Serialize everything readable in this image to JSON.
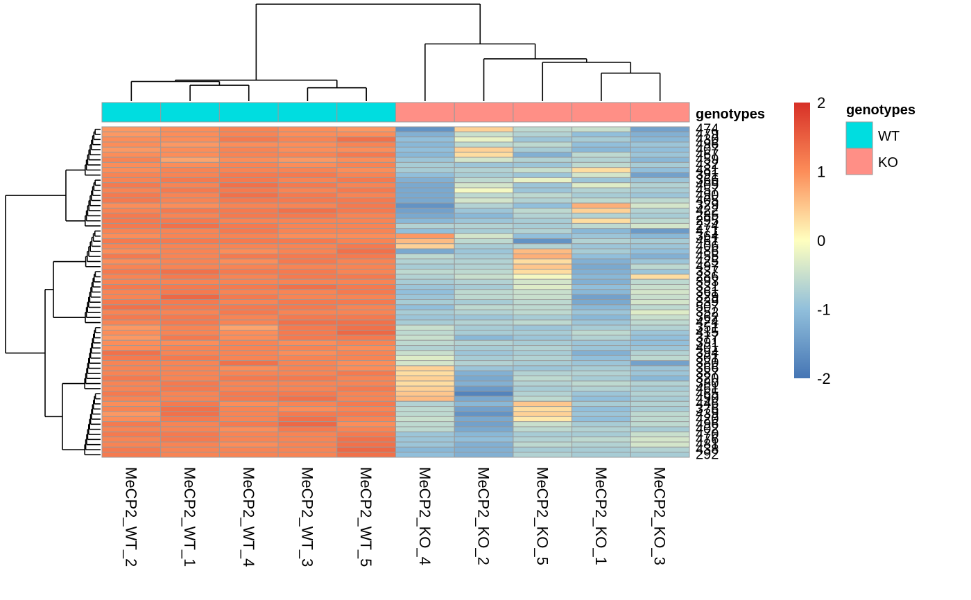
{
  "chart_data": {
    "type": "heatmap",
    "columns": [
      "MeCP2_WT_2",
      "MeCP2_WT_1",
      "MeCP2_WT_4",
      "MeCP2_WT_3",
      "MeCP2_WT_5",
      "MeCP2_KO_4",
      "MeCP2_KO_2",
      "MeCP2_KO_5",
      "MeCP2_KO_1",
      "MeCP2_KO_3"
    ],
    "column_genotypes": [
      "WT",
      "WT",
      "WT",
      "WT",
      "WT",
      "KO",
      "KO",
      "KO",
      "KO",
      "KO"
    ],
    "annotation_title": "genotypes",
    "legend": {
      "title": "genotypes",
      "items": [
        {
          "label": "WT",
          "color": "#00DDE0"
        },
        {
          "label": "KO",
          "color": "#FF8F86"
        }
      ]
    },
    "color_scale": {
      "range": [
        -2,
        2
      ],
      "ticks": [
        2,
        1,
        0,
        -1,
        -2
      ],
      "low_color": "#4575B4",
      "mid_color": "#FFFFBF",
      "high_color": "#D73027"
    },
    "row_labels": [
      "474",
      "479",
      "430",
      "496",
      "407",
      "467",
      "459",
      "432",
      "481",
      "391",
      "366",
      "409",
      "457",
      "490",
      "405",
      "329",
      "422",
      "285",
      "295",
      "274",
      "471",
      "364",
      "461",
      "406",
      "486",
      "455",
      "425",
      "497",
      "337",
      "286",
      "393",
      "331",
      "361",
      "329",
      "339",
      "507",
      "352",
      "362",
      "424",
      "351",
      "415",
      "377",
      "391",
      "401",
      "394",
      "301",
      "380",
      "366",
      "387",
      "320",
      "380",
      "461",
      "465",
      "490",
      "446",
      "376",
      "439",
      "420",
      "496",
      "402",
      "470",
      "476",
      "481",
      "438",
      "292"
    ],
    "values": [
      [
        0.9,
        1.0,
        1.1,
        1.0,
        0.9,
        -1.6,
        0.4,
        -0.6,
        -0.5,
        -1.4
      ],
      [
        0.9,
        1.0,
        1.1,
        1.0,
        1.0,
        -1.2,
        -0.5,
        -0.7,
        -1.0,
        -1.2
      ],
      [
        1.0,
        1.0,
        1.2,
        1.1,
        1.3,
        -1.0,
        -0.2,
        -0.9,
        -0.8,
        -1.1
      ],
      [
        1.0,
        0.9,
        1.0,
        1.0,
        1.1,
        -1.1,
        -0.6,
        -0.6,
        -1.0,
        -0.9
      ],
      [
        0.9,
        1.0,
        1.1,
        1.0,
        1.0,
        -1.0,
        0.4,
        -0.8,
        -1.1,
        -1.0
      ],
      [
        1.0,
        1.0,
        1.1,
        1.1,
        1.2,
        -1.1,
        0.3,
        -1.2,
        -0.6,
        -0.9
      ],
      [
        1.1,
        0.8,
        1.0,
        0.9,
        1.0,
        -0.9,
        -0.4,
        -0.7,
        -0.7,
        -1.1
      ],
      [
        1.0,
        1.0,
        1.1,
        1.0,
        1.1,
        -0.8,
        -0.9,
        -0.9,
        -0.6,
        -0.8
      ],
      [
        1.0,
        1.1,
        1.1,
        1.1,
        1.0,
        -0.8,
        -0.7,
        -0.5,
        0.3,
        -1.0
      ],
      [
        1.1,
        1.1,
        1.2,
        1.2,
        1.1,
        -1.0,
        -0.8,
        -0.9,
        -0.4,
        -1.4
      ],
      [
        1.1,
        1.2,
        1.2,
        1.1,
        1.2,
        -1.2,
        -0.6,
        -0.2,
        -0.9,
        -0.9
      ],
      [
        1.2,
        1.1,
        1.3,
        1.2,
        1.1,
        -1.3,
        -0.4,
        -0.9,
        -0.3,
        -0.7
      ],
      [
        1.1,
        1.2,
        1.2,
        1.1,
        1.2,
        -1.3,
        -0.1,
        -0.9,
        -0.7,
        -0.8
      ],
      [
        1.2,
        1.1,
        1.3,
        1.2,
        1.1,
        -1.3,
        -0.6,
        -0.6,
        -0.8,
        -0.9
      ],
      [
        1.2,
        1.1,
        1.2,
        1.2,
        1.2,
        -1.3,
        -0.4,
        -0.7,
        -0.6,
        -0.6
      ],
      [
        1.0,
        1.0,
        1.1,
        1.1,
        1.2,
        -1.6,
        -0.7,
        -1.0,
        0.7,
        -0.4
      ],
      [
        1.1,
        1.2,
        1.2,
        1.3,
        1.2,
        -1.4,
        -0.9,
        -0.6,
        0.4,
        -0.7
      ],
      [
        1.2,
        1.1,
        1.2,
        1.2,
        1.1,
        -1.3,
        -1.1,
        -0.7,
        -0.7,
        -0.8
      ],
      [
        1.2,
        1.2,
        1.1,
        1.1,
        1.1,
        -1.1,
        -0.9,
        -0.8,
        0.3,
        -0.6
      ],
      [
        1.2,
        1.3,
        1.2,
        1.1,
        1.1,
        -0.7,
        -0.7,
        -0.8,
        -0.6,
        -0.4
      ],
      [
        1.1,
        1.1,
        1.2,
        1.1,
        1.1,
        -1.0,
        -0.8,
        -0.7,
        -1.1,
        -1.5
      ],
      [
        1.0,
        1.1,
        1.1,
        1.0,
        1.0,
        0.9,
        -0.4,
        -1.0,
        -0.9,
        -1.1
      ],
      [
        1.2,
        1.2,
        1.2,
        1.2,
        1.1,
        0.6,
        -0.6,
        -1.6,
        -0.7,
        -0.8
      ],
      [
        1.1,
        1.1,
        1.1,
        1.1,
        1.2,
        0.4,
        -0.8,
        -0.7,
        -0.9,
        -0.9
      ],
      [
        1.0,
        1.1,
        1.0,
        1.1,
        1.3,
        -1.3,
        -0.9,
        0.6,
        -0.8,
        -1.0
      ],
      [
        1.2,
        1.1,
        1.2,
        1.2,
        1.2,
        -0.6,
        -0.8,
        0.7,
        -1.0,
        -1.2
      ],
      [
        1.0,
        1.1,
        1.0,
        1.2,
        1.1,
        -0.7,
        -0.7,
        0.3,
        -1.2,
        -0.9
      ],
      [
        1.1,
        1.1,
        1.1,
        1.1,
        1.1,
        -0.8,
        -0.7,
        0.5,
        -1.3,
        -0.6
      ],
      [
        1.2,
        1.3,
        1.2,
        1.2,
        1.1,
        -0.6,
        -0.6,
        0.3,
        -1.2,
        -0.9
      ],
      [
        1.1,
        1.2,
        1.1,
        1.2,
        1.2,
        -0.7,
        -0.5,
        -0.1,
        -1.1,
        0.3
      ],
      [
        1.1,
        1.1,
        1.1,
        1.1,
        1.1,
        -0.8,
        -0.7,
        -0.4,
        -1.2,
        -0.6
      ],
      [
        1.2,
        1.2,
        1.2,
        1.3,
        1.2,
        -0.9,
        -0.8,
        -0.3,
        -1.0,
        -0.5
      ],
      [
        1.1,
        1.2,
        1.1,
        1.1,
        1.2,
        -1.0,
        -0.6,
        -0.5,
        -1.1,
        -0.4
      ],
      [
        1.1,
        1.4,
        1.2,
        1.1,
        1.1,
        -0.9,
        -0.6,
        -0.5,
        -1.4,
        -0.5
      ],
      [
        1.2,
        1.2,
        1.1,
        1.2,
        1.2,
        -0.8,
        -0.8,
        -0.6,
        -1.3,
        -0.4
      ],
      [
        1.3,
        1.2,
        1.2,
        1.2,
        1.1,
        -1.0,
        -0.6,
        -0.6,
        -1.1,
        -0.6
      ],
      [
        1.1,
        1.1,
        1.2,
        1.1,
        1.1,
        -0.8,
        -0.7,
        -0.6,
        -0.9,
        -0.3
      ],
      [
        1.2,
        1.2,
        1.1,
        1.2,
        1.2,
        -0.9,
        -0.9,
        -0.8,
        -1.1,
        -0.5
      ],
      [
        1.1,
        1.2,
        1.1,
        1.3,
        1.3,
        -0.8,
        -0.7,
        -0.6,
        -0.9,
        -0.6
      ],
      [
        0.9,
        1.1,
        0.8,
        1.2,
        1.3,
        -0.5,
        -0.8,
        -0.9,
        -0.8,
        -0.7
      ],
      [
        1.0,
        1.1,
        1.0,
        1.2,
        1.4,
        -0.6,
        -0.8,
        -0.8,
        -0.6,
        -0.9
      ],
      [
        0.9,
        1.2,
        1.0,
        1.2,
        1.2,
        -0.5,
        -1.1,
        -0.9,
        -0.7,
        -1.0
      ],
      [
        1.0,
        1.0,
        1.1,
        1.0,
        1.1,
        -0.6,
        -0.7,
        -0.8,
        -0.9,
        -1.0
      ],
      [
        1.0,
        1.1,
        1.1,
        1.1,
        1.0,
        -0.7,
        -0.8,
        -0.7,
        -0.9,
        -0.9
      ],
      [
        1.3,
        1.1,
        1.1,
        1.0,
        1.1,
        -0.5,
        -0.9,
        -0.8,
        -1.2,
        -0.7
      ],
      [
        1.2,
        1.2,
        1.1,
        1.1,
        1.1,
        -0.3,
        -0.8,
        -0.7,
        -1.0,
        -0.6
      ],
      [
        1.1,
        1.1,
        1.3,
        1.1,
        1.0,
        -0.4,
        -0.7,
        -0.8,
        -0.9,
        -1.4
      ],
      [
        1.1,
        1.1,
        1.0,
        1.1,
        1.0,
        0.4,
        -0.9,
        -0.9,
        -0.8,
        -0.9
      ],
      [
        1.1,
        1.1,
        1.1,
        1.1,
        1.2,
        0.3,
        -1.2,
        -0.7,
        -0.7,
        -0.9
      ],
      [
        1.2,
        1.1,
        1.2,
        1.2,
        1.1,
        0.4,
        -1.3,
        -0.6,
        -0.8,
        -1.1
      ],
      [
        1.1,
        1.2,
        1.1,
        1.1,
        1.1,
        0.3,
        -1.2,
        -0.7,
        -0.6,
        -0.7
      ],
      [
        1.1,
        1.2,
        1.1,
        1.1,
        1.2,
        0.4,
        -1.5,
        -0.8,
        -0.7,
        -0.8
      ],
      [
        1.2,
        1.1,
        1.2,
        1.2,
        1.1,
        0.5,
        -1.8,
        -0.7,
        -0.9,
        -0.7
      ],
      [
        1.1,
        1.1,
        1.2,
        1.3,
        1.1,
        0.6,
        -1.3,
        -0.6,
        -1.0,
        -0.8
      ],
      [
        1.0,
        1.2,
        1.0,
        1.1,
        1.2,
        -0.7,
        -1.1,
        0.5,
        -0.8,
        -0.7
      ],
      [
        1.1,
        1.3,
        1.1,
        1.0,
        1.1,
        -0.6,
        -1.4,
        0.3,
        -1.0,
        -0.8
      ],
      [
        0.9,
        1.3,
        1.1,
        1.2,
        1.2,
        -0.6,
        -1.6,
        0.4,
        -0.9,
        -0.6
      ],
      [
        1.0,
        1.2,
        1.1,
        1.3,
        1.1,
        -0.5,
        -1.3,
        0.2,
        -1.0,
        -0.6
      ],
      [
        1.2,
        1.1,
        1.2,
        1.4,
        1.0,
        -0.6,
        -1.4,
        -0.5,
        -0.8,
        -0.6
      ],
      [
        1.1,
        1.1,
        1.0,
        1.2,
        1.1,
        -0.6,
        -1.3,
        -0.6,
        -0.7,
        -0.8
      ],
      [
        1.2,
        1.2,
        1.1,
        1.1,
        1.2,
        -0.9,
        -1.1,
        -0.8,
        -0.8,
        -0.5
      ],
      [
        1.1,
        1.2,
        1.1,
        1.1,
        1.3,
        -0.9,
        -1.0,
        -0.7,
        -0.6,
        -0.4
      ],
      [
        1.1,
        1.1,
        1.0,
        1.1,
        1.3,
        -0.9,
        -1.2,
        -0.6,
        -0.7,
        -0.4
      ],
      [
        1.2,
        1.1,
        1.1,
        1.1,
        1.4,
        -1.1,
        -1.2,
        -0.8,
        -0.8,
        -0.7
      ],
      [
        1.2,
        1.1,
        1.1,
        1.1,
        1.3,
        -1.0,
        -1.2,
        -0.7,
        -0.8,
        -0.8
      ]
    ],
    "column_dendrogram": {
      "merges": [
        [
          1,
          2,
          0.6
        ],
        [
          4,
          5,
          0.7
        ],
        [
          3,
          6,
          0.85
        ],
        [
          7,
          8,
          1.0
        ],
        [
          9,
          10,
          0.62
        ],
        [
          8,
          10,
          1.0
        ],
        [
          7,
          10,
          1.18
        ],
        [
          6,
          10,
          1.6
        ],
        [
          1,
          10,
          3.05
        ]
      ]
    },
    "row_dendrogram": {
      "groups_top_to_bottom": 65
    }
  }
}
